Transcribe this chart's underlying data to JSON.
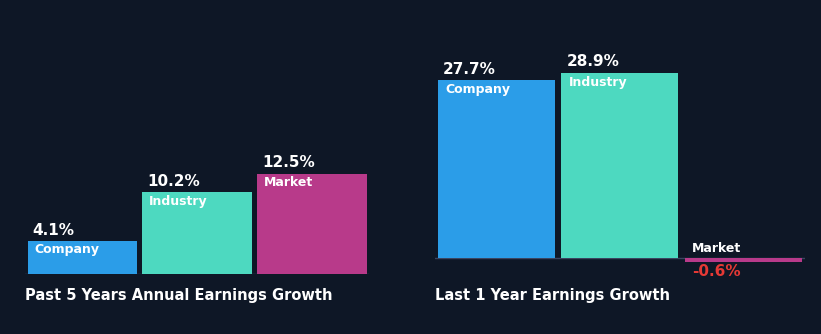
{
  "background_color": "#0e1726",
  "chart1_title": "Past 5 Years Annual Earnings Growth",
  "chart2_title": "Last 1 Year Earnings Growth",
  "group1": {
    "labels": [
      "Company",
      "Industry",
      "Market"
    ],
    "values": [
      4.1,
      10.2,
      12.5
    ],
    "colors": [
      "#2b9de8",
      "#4dd9c0",
      "#b83a8a"
    ],
    "value_labels": [
      "4.1%",
      "10.2%",
      "12.5%"
    ]
  },
  "group2": {
    "labels": [
      "Company",
      "Industry",
      "Market"
    ],
    "values": [
      27.7,
      28.9,
      -0.6
    ],
    "colors": [
      "#2b9de8",
      "#4dd9c0",
      "#b83a8a"
    ],
    "value_labels": [
      "27.7%",
      "28.9%",
      "-0.6%"
    ]
  },
  "value_color_positive": "#ffffff",
  "value_color_negative": "#e53935",
  "bar_label_color": "#ffffff",
  "title_color": "#ffffff",
  "title_fontsize": 10.5,
  "bar_value_fontsize": 11,
  "bar_label_fontsize": 9,
  "axes_line_color": "#3a4460"
}
